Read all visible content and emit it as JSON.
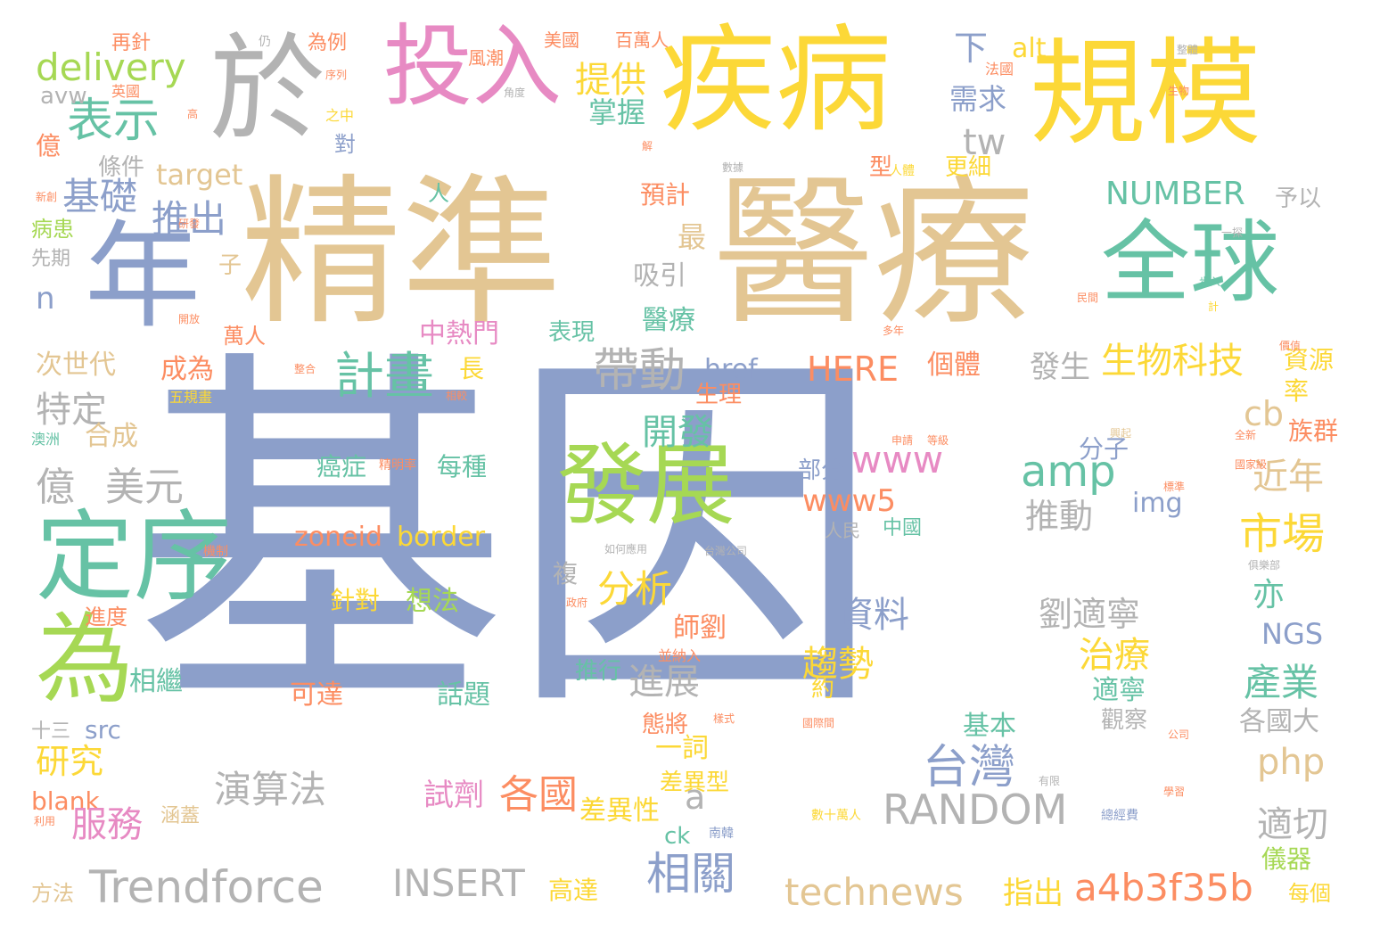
{
  "palette": {
    "blue": "#8c9fca",
    "tan": "#e3c693",
    "yellow": "#fcd837",
    "green": "#66c2a5",
    "lime": "#a6d854",
    "pink": "#e78ac3",
    "orange": "#fc8d62",
    "grey": "#b3b3b3"
  },
  "words": [
    {
      "text": "基因"
    },
    {
      "text": "精準"
    },
    {
      "text": "醫療"
    },
    {
      "text": "疾病"
    },
    {
      "text": "規模"
    },
    {
      "text": "於"
    },
    {
      "text": "投入"
    },
    {
      "text": "年"
    },
    {
      "text": "全球"
    },
    {
      "text": "定序"
    },
    {
      "text": "為"
    },
    {
      "text": "發展"
    },
    {
      "text": "表示"
    },
    {
      "text": "基礎"
    },
    {
      "text": "推出"
    },
    {
      "text": "delivery"
    },
    {
      "text": "avw"
    },
    {
      "text": "提供"
    },
    {
      "text": "掌握"
    },
    {
      "text": "需求"
    },
    {
      "text": "下"
    },
    {
      "text": "alt"
    },
    {
      "text": "tw"
    },
    {
      "text": "NUMBER"
    },
    {
      "text": "予以"
    },
    {
      "text": "target"
    },
    {
      "text": "條件"
    },
    {
      "text": "億"
    },
    {
      "text": "病患"
    },
    {
      "text": "先期"
    },
    {
      "text": "n"
    },
    {
      "text": "子"
    },
    {
      "text": "吸引"
    },
    {
      "text": "最"
    },
    {
      "text": "預計"
    },
    {
      "text": "人"
    },
    {
      "text": "更細"
    },
    {
      "text": "型"
    },
    {
      "text": "萬人"
    },
    {
      "text": "中熱門"
    },
    {
      "text": "表現"
    },
    {
      "text": "醫療"
    },
    {
      "text": "計畫"
    },
    {
      "text": "帶動"
    },
    {
      "text": "HERE"
    },
    {
      "text": "個體"
    },
    {
      "text": "發生"
    },
    {
      "text": "生物科技"
    },
    {
      "text": "資源"
    },
    {
      "text": "率"
    },
    {
      "text": "次世代"
    },
    {
      "text": "特定"
    },
    {
      "text": "成為"
    },
    {
      "text": "長"
    },
    {
      "text": "href"
    },
    {
      "text": "生理"
    },
    {
      "text": "合成"
    },
    {
      "text": "億"
    },
    {
      "text": "美元"
    },
    {
      "text": "開發"
    },
    {
      "text": "cb"
    },
    {
      "text": "族群"
    },
    {
      "text": "www"
    },
    {
      "text": "amp"
    },
    {
      "text": "分子"
    },
    {
      "text": "近年"
    },
    {
      "text": "www5"
    },
    {
      "text": "推動"
    },
    {
      "text": "img"
    },
    {
      "text": "市場"
    },
    {
      "text": "部分"
    },
    {
      "text": "癌症"
    },
    {
      "text": "每種"
    },
    {
      "text": "zoneid"
    },
    {
      "text": "border"
    },
    {
      "text": "中國"
    },
    {
      "text": "人民"
    },
    {
      "text": "複"
    },
    {
      "text": "分析"
    },
    {
      "text": "針對"
    },
    {
      "text": "想法"
    },
    {
      "text": "資料"
    },
    {
      "text": "劉適寧"
    },
    {
      "text": "亦"
    },
    {
      "text": "NGS"
    },
    {
      "text": "師劉"
    },
    {
      "text": "趨勢"
    },
    {
      "text": "治療"
    },
    {
      "text": "進度"
    },
    {
      "text": "相繼"
    },
    {
      "text": "可達"
    },
    {
      "text": "話題"
    },
    {
      "text": "推行"
    },
    {
      "text": "進展"
    },
    {
      "text": "約"
    },
    {
      "text": "適寧"
    },
    {
      "text": "產業"
    },
    {
      "text": "觀察"
    },
    {
      "text": "各國大"
    },
    {
      "text": "十三"
    },
    {
      "text": "src"
    },
    {
      "text": "研究"
    },
    {
      "text": "態將"
    },
    {
      "text": "一詞"
    },
    {
      "text": "基本"
    },
    {
      "text": "台灣"
    },
    {
      "text": "php"
    },
    {
      "text": "演算法"
    },
    {
      "text": "差異型"
    },
    {
      "text": "blank"
    },
    {
      "text": "試劑"
    },
    {
      "text": "各國"
    },
    {
      "text": "a"
    },
    {
      "text": "服務"
    },
    {
      "text": "差異性"
    },
    {
      "text": "RANDOM"
    },
    {
      "text": "適切"
    },
    {
      "text": "涵蓋"
    },
    {
      "text": "ck"
    },
    {
      "text": "相關"
    },
    {
      "text": "儀器"
    },
    {
      "text": "方法"
    },
    {
      "text": "Trendforce"
    },
    {
      "text": "INSERT"
    },
    {
      "text": "高達"
    },
    {
      "text": "technews"
    },
    {
      "text": "指出"
    },
    {
      "text": "a4b3f35b"
    },
    {
      "text": "每個"
    },
    {
      "text": "再針"
    },
    {
      "text": "為例"
    },
    {
      "text": "美國"
    },
    {
      "text": "百萬人"
    },
    {
      "text": "風潮"
    },
    {
      "text": "英國"
    },
    {
      "text": "法國"
    },
    {
      "text": "之中"
    },
    {
      "text": "對"
    },
    {
      "text": "南韓"
    },
    {
      "text": "總經費"
    },
    {
      "text": "數十萬人"
    },
    {
      "text": "五規畫"
    },
    {
      "text": "澳洲"
    },
    {
      "text": "機制"
    },
    {
      "text": "並納入"
    },
    {
      "text": "國際間"
    },
    {
      "text": "公司"
    },
    {
      "text": "生物"
    },
    {
      "text": "步入"
    },
    {
      "text": "俱樂部"
    },
    {
      "text": "一探"
    },
    {
      "text": "人體"
    },
    {
      "text": "精明率"
    },
    {
      "text": "角度"
    },
    {
      "text": "高"
    },
    {
      "text": "解"
    },
    {
      "text": "相較"
    },
    {
      "text": "價值"
    },
    {
      "text": "國家級"
    },
    {
      "text": "興起"
    },
    {
      "text": "如何應用"
    },
    {
      "text": "台灣公司"
    },
    {
      "text": "政府"
    },
    {
      "text": "有限"
    },
    {
      "text": "學習"
    },
    {
      "text": "利用"
    },
    {
      "text": "整體"
    },
    {
      "text": "全新"
    },
    {
      "text": "民間"
    },
    {
      "text": "多年"
    },
    {
      "text": "計"
    },
    {
      "text": "樣式"
    },
    {
      "text": "數據"
    },
    {
      "text": "申請"
    },
    {
      "text": "等級"
    },
    {
      "text": "標準"
    },
    {
      "text": "開放"
    },
    {
      "text": "整合"
    },
    {
      "text": "研發"
    },
    {
      "text": "新創"
    },
    {
      "text": "序列"
    },
    {
      "text": "仍"
    }
  ]
}
